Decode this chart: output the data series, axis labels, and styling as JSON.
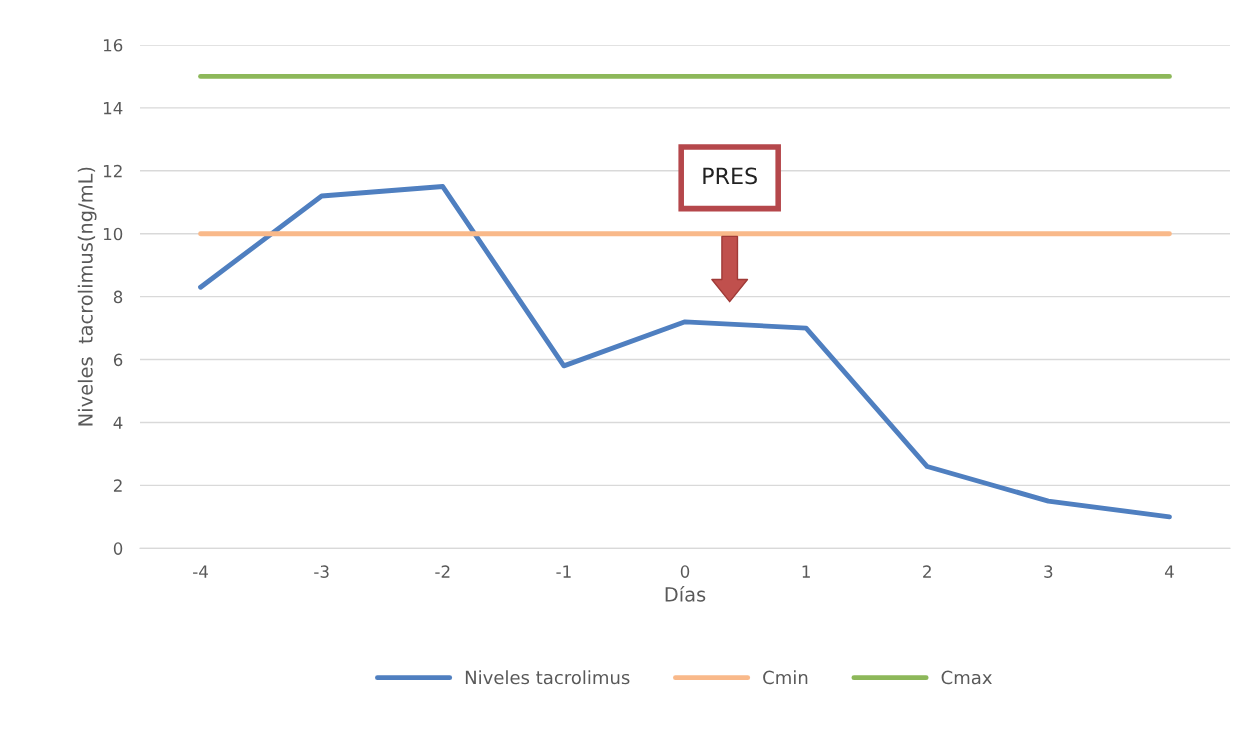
{
  "chart_data": {
    "type": "line",
    "xlabel": "Días",
    "ylabel": "Niveles  tacrolimus(ng/mL)",
    "categories": [
      "-4",
      "-3",
      "-2",
      "-1",
      "0",
      "1",
      "2",
      "3",
      "4"
    ],
    "series": [
      {
        "name": "Niveles tacrolimus",
        "color": "#4f7fc0",
        "values": [
          8.3,
          11.2,
          11.5,
          5.8,
          7.2,
          7.0,
          2.6,
          1.5,
          1.0
        ]
      },
      {
        "name": "Cmin",
        "color": "#f9b98a",
        "values": [
          10,
          10,
          10,
          10,
          10,
          10,
          10,
          10,
          10
        ]
      },
      {
        "name": "Cmax",
        "color": "#8db85a",
        "values": [
          15,
          15,
          15,
          15,
          15,
          15,
          15,
          15,
          15
        ]
      }
    ],
    "ylim": [
      0,
      16
    ],
    "yticks": [
      0,
      2,
      4,
      6,
      8,
      10,
      12,
      14,
      16
    ],
    "grid": "y",
    "legend": "bottom",
    "annotations": [
      "PRES"
    ]
  }
}
